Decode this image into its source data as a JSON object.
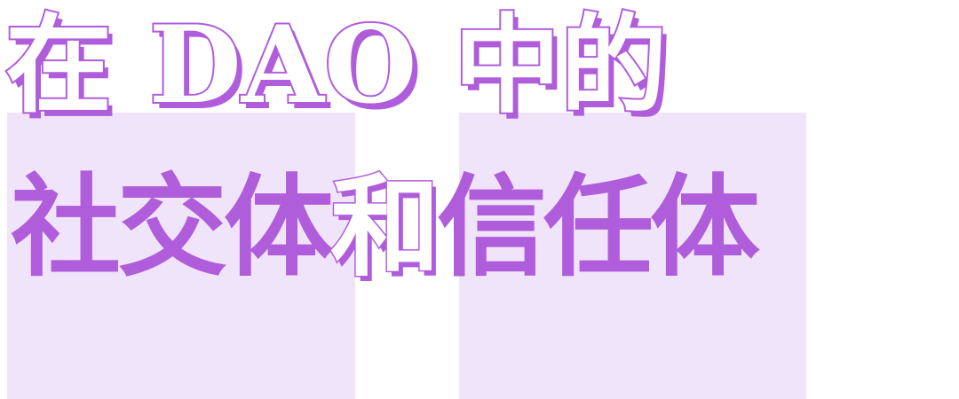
{
  "headline": {
    "line1": "在 DAO 中的",
    "line2_part1": "社交体",
    "line2_part2": "和",
    "line2_part3": "信任体"
  },
  "colors": {
    "accent": "#b05ddc",
    "block_bg": "#f0e4fb",
    "page_bg": "#ffffff"
  }
}
